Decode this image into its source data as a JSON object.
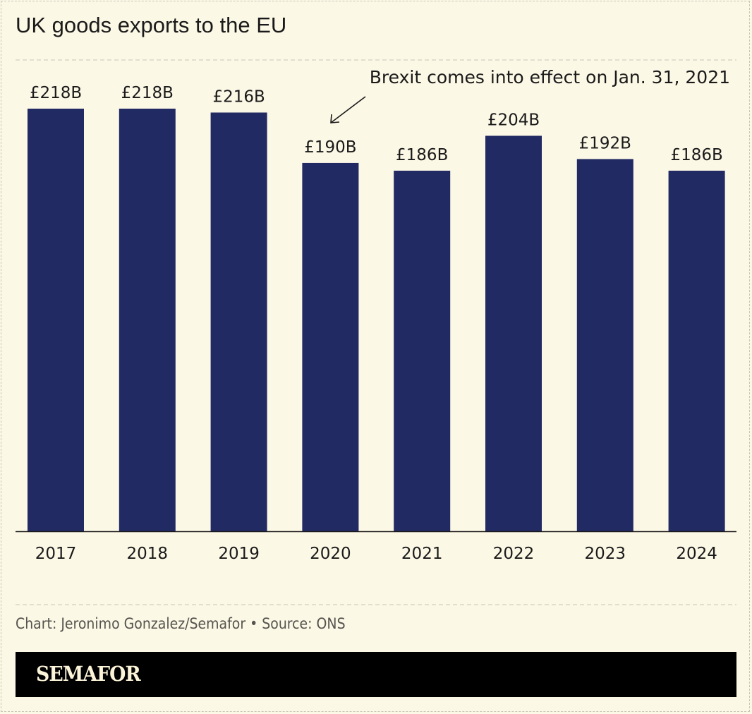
{
  "chart_data": {
    "type": "bar",
    "title": "UK goods exports to the EU",
    "categories": [
      "2017",
      "2018",
      "2019",
      "2020",
      "2021",
      "2022",
      "2023",
      "2024"
    ],
    "values": [
      218,
      218,
      216,
      190,
      186,
      204,
      192,
      186
    ],
    "data_labels": [
      "£218B",
      "£218B",
      "£216B",
      "£190B",
      "£186B",
      "£204B",
      "£192B",
      "£186B"
    ],
    "unit": "£ billions",
    "ylim": [
      0,
      218
    ],
    "grid": false,
    "bar_color": "#222a63",
    "annotation": {
      "text": "Brexit comes into effect on Jan. 31, 2021",
      "target": "2020"
    }
  },
  "credit": "Chart: Jeronimo Gonzalez/Semafor • Source: ONS",
  "brand": "SEMAFOR",
  "colors": {
    "background": "#fcf8e6",
    "band": "#000000",
    "logo": "#fcf4d8"
  }
}
